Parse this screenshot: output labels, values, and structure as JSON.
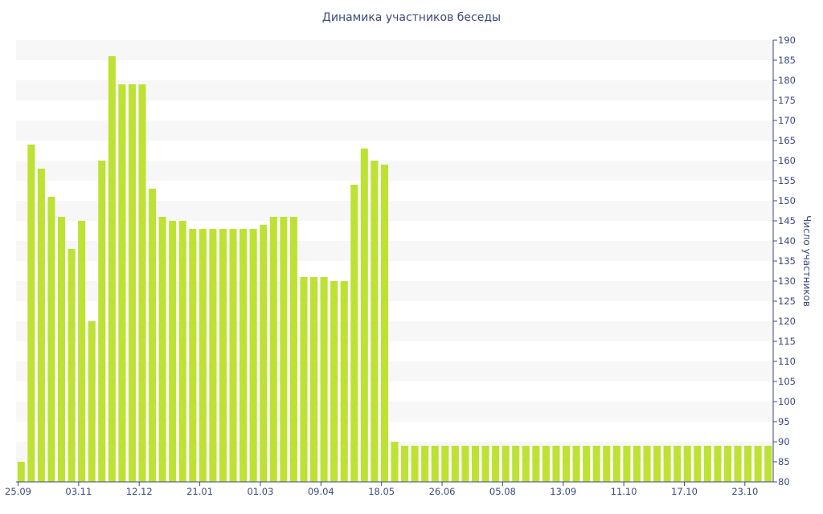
{
  "chart_data": {
    "type": "bar",
    "title": "Динамика участников беседы",
    "ylabel": "Число участников",
    "ylim": [
      80,
      190
    ],
    "y_ticks": [
      80,
      85,
      90,
      95,
      100,
      105,
      110,
      115,
      120,
      125,
      130,
      135,
      140,
      145,
      150,
      155,
      160,
      165,
      170,
      175,
      180,
      185,
      190
    ],
    "x_tick_labels": [
      "25.09",
      "03.11",
      "12.12",
      "21.01",
      "01.03",
      "09.04",
      "18.05",
      "26.06",
      "05.08",
      "13.09",
      "11.10",
      "17.10",
      "23.10"
    ],
    "y_axis_position": "right",
    "grid": "horizontal alternating bands",
    "bar_color": "#bde233",
    "values": [
      85,
      164,
      158,
      151,
      146,
      138,
      145,
      120,
      160,
      186,
      179,
      179,
      179,
      153,
      146,
      145,
      145,
      143,
      143,
      143,
      143,
      143,
      143,
      143,
      144,
      146,
      146,
      146,
      131,
      131,
      131,
      130,
      130,
      154,
      163,
      160,
      159,
      90,
      89,
      89,
      89,
      89,
      89,
      89,
      89,
      89,
      89,
      89,
      89,
      89,
      89,
      89,
      89,
      89,
      89,
      89,
      89,
      89,
      89,
      89,
      89,
      89,
      89,
      89,
      89,
      89,
      89,
      89,
      89,
      89,
      89,
      89,
      89,
      89,
      89
    ]
  }
}
